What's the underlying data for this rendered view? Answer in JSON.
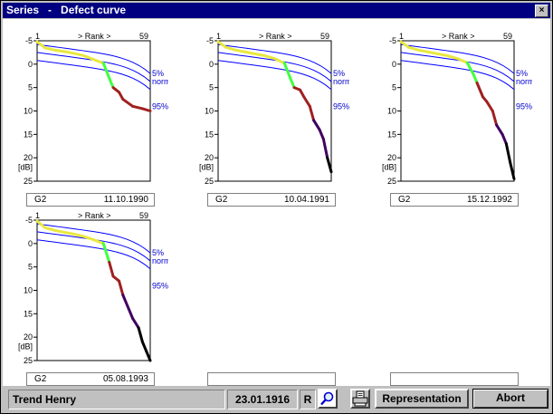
{
  "window": {
    "title": "Series   -   Defect curve",
    "close_glyph": "×"
  },
  "axis": {
    "rank_label": "> Rank >",
    "x_start": "1",
    "x_end": "59",
    "y_ticks": [
      "-5",
      "0",
      "5",
      "10",
      "15",
      "20",
      "25"
    ],
    "y_unit": "[dB]"
  },
  "bands": {
    "p5": "5%",
    "normal": "normal",
    "p95": "95%"
  },
  "panels": [
    {
      "eye": "G2",
      "date": "11.10.1990"
    },
    {
      "eye": "G2",
      "date": "10.04.1991"
    },
    {
      "eye": "G2",
      "date": "15.12.1992"
    },
    {
      "eye": "G2",
      "date": "05.08.1993"
    },
    {
      "eye": "",
      "date": ""
    },
    {
      "eye": "",
      "date": ""
    }
  ],
  "chart_data": [
    {
      "type": "line",
      "title": "",
      "xlabel": "> Rank >",
      "ylabel": "[dB]",
      "xlim": [
        1,
        59
      ],
      "ylim": [
        -5,
        25
      ],
      "series": [
        {
          "name": "",
          "x": [
            1,
            5,
            10,
            15,
            20,
            25,
            30,
            35,
            38,
            40,
            43,
            45,
            50,
            55,
            59
          ],
          "y": [
            -4.8,
            -3.5,
            -3,
            -2.7,
            -2.3,
            -1.8,
            -1,
            -0.2,
            3,
            5,
            6,
            7.5,
            9,
            9.5,
            10
          ]
        }
      ]
    },
    {
      "type": "line",
      "title": "",
      "xlabel": "> Rank >",
      "ylabel": "[dB]",
      "xlim": [
        1,
        59
      ],
      "ylim": [
        -5,
        25
      ],
      "series": [
        {
          "name": "",
          "x": [
            1,
            5,
            10,
            15,
            20,
            25,
            30,
            35,
            38,
            40,
            43,
            45,
            48,
            50,
            53,
            55,
            57,
            59
          ],
          "y": [
            -4.8,
            -3.6,
            -3,
            -2.6,
            -2.2,
            -1.8,
            -1.2,
            -0.2,
            3,
            5,
            5.5,
            7,
            9,
            12,
            14,
            16,
            20,
            23
          ]
        }
      ]
    },
    {
      "type": "line",
      "title": "",
      "xlabel": "> Rank >",
      "ylabel": "[dB]",
      "xlim": [
        1,
        59
      ],
      "ylim": [
        -5,
        25
      ],
      "series": [
        {
          "name": "",
          "x": [
            1,
            5,
            10,
            15,
            20,
            25,
            30,
            35,
            38,
            40,
            43,
            45,
            48,
            50,
            53,
            55,
            57,
            59
          ],
          "y": [
            -4.8,
            -3.6,
            -3,
            -2.6,
            -2.2,
            -1.8,
            -1.2,
            -0.3,
            2,
            4,
            7,
            8,
            10,
            13,
            15,
            17,
            21,
            24.5
          ]
        }
      ]
    },
    {
      "type": "line",
      "title": "",
      "xlabel": "> Rank >",
      "ylabel": "[dB]",
      "xlim": [
        1,
        59
      ],
      "ylim": [
        -5,
        25
      ],
      "series": [
        {
          "name": "",
          "x": [
            1,
            5,
            10,
            15,
            20,
            25,
            30,
            35,
            38,
            40,
            43,
            45,
            48,
            50,
            53,
            55,
            57,
            59
          ],
          "y": [
            -4.8,
            -3.4,
            -2.8,
            -2.4,
            -2,
            -1.5,
            -0.8,
            0,
            4,
            7,
            8,
            11,
            14,
            16,
            18,
            21,
            23,
            25
          ]
        }
      ]
    }
  ],
  "status": {
    "patient": "Trend Henry",
    "birth_date": "23.01.1916",
    "eye": "R",
    "magnify_icon": "magnifier-icon",
    "print_icon": "printer-icon",
    "representation": "Representation",
    "abort": "Abort"
  },
  "colors": {
    "titlebar": "#000080",
    "band": "#0000ff",
    "curve_normal": "#e8e840",
    "curve_mild": "#40ff40",
    "curve_moderate": "#a02020",
    "curve_severe": "#400060",
    "curve_max": "#000000"
  }
}
